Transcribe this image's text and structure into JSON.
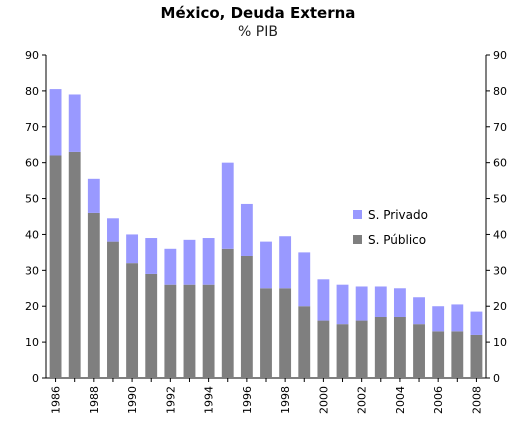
{
  "chart_data": {
    "type": "bar",
    "stacked": true,
    "title": "México, Deuda Externa",
    "subtitle": "% PIB",
    "xlabel": "",
    "ylabel": "",
    "ylim": [
      0,
      90
    ],
    "y_ticks": [
      "0",
      "10",
      "20",
      "30",
      "40",
      "50",
      "60",
      "70",
      "80",
      "90"
    ],
    "secondary_y_axis": true,
    "grid": false,
    "legend_position": "right",
    "categories": [
      "1986",
      "1987",
      "1988",
      "1989",
      "1990",
      "1991",
      "1992",
      "1993",
      "1994",
      "1995",
      "1996",
      "1997",
      "1998",
      "1999",
      "2000",
      "2001",
      "2002",
      "2003",
      "2004",
      "2005",
      "2006",
      "2007",
      "2008"
    ],
    "x_tick_labels": [
      "1986",
      "",
      "1988",
      "",
      "1990",
      "",
      "1992",
      "",
      "1994",
      "",
      "1996",
      "",
      "1998",
      "",
      "2000",
      "",
      "2002",
      "",
      "2004",
      "",
      "2006",
      "",
      "2008"
    ],
    "series": [
      {
        "name": "S. Público",
        "color": "#7f7f7f",
        "values": [
          62,
          63,
          46,
          38,
          32,
          29,
          26,
          26,
          26,
          36,
          34,
          25,
          25,
          20,
          16,
          15,
          16,
          17,
          17,
          15,
          13,
          13,
          12
        ]
      },
      {
        "name": "S. Privado",
        "color": "#9999ff",
        "values": [
          18.5,
          16,
          9.5,
          6.5,
          8,
          10,
          10,
          12.5,
          13,
          24,
          14.5,
          13,
          14.5,
          15,
          11.5,
          11,
          9.5,
          8.5,
          8,
          7.5,
          7,
          7.5,
          6.5
        ]
      }
    ],
    "legend": [
      "S. Privado",
      "S. Público"
    ]
  }
}
